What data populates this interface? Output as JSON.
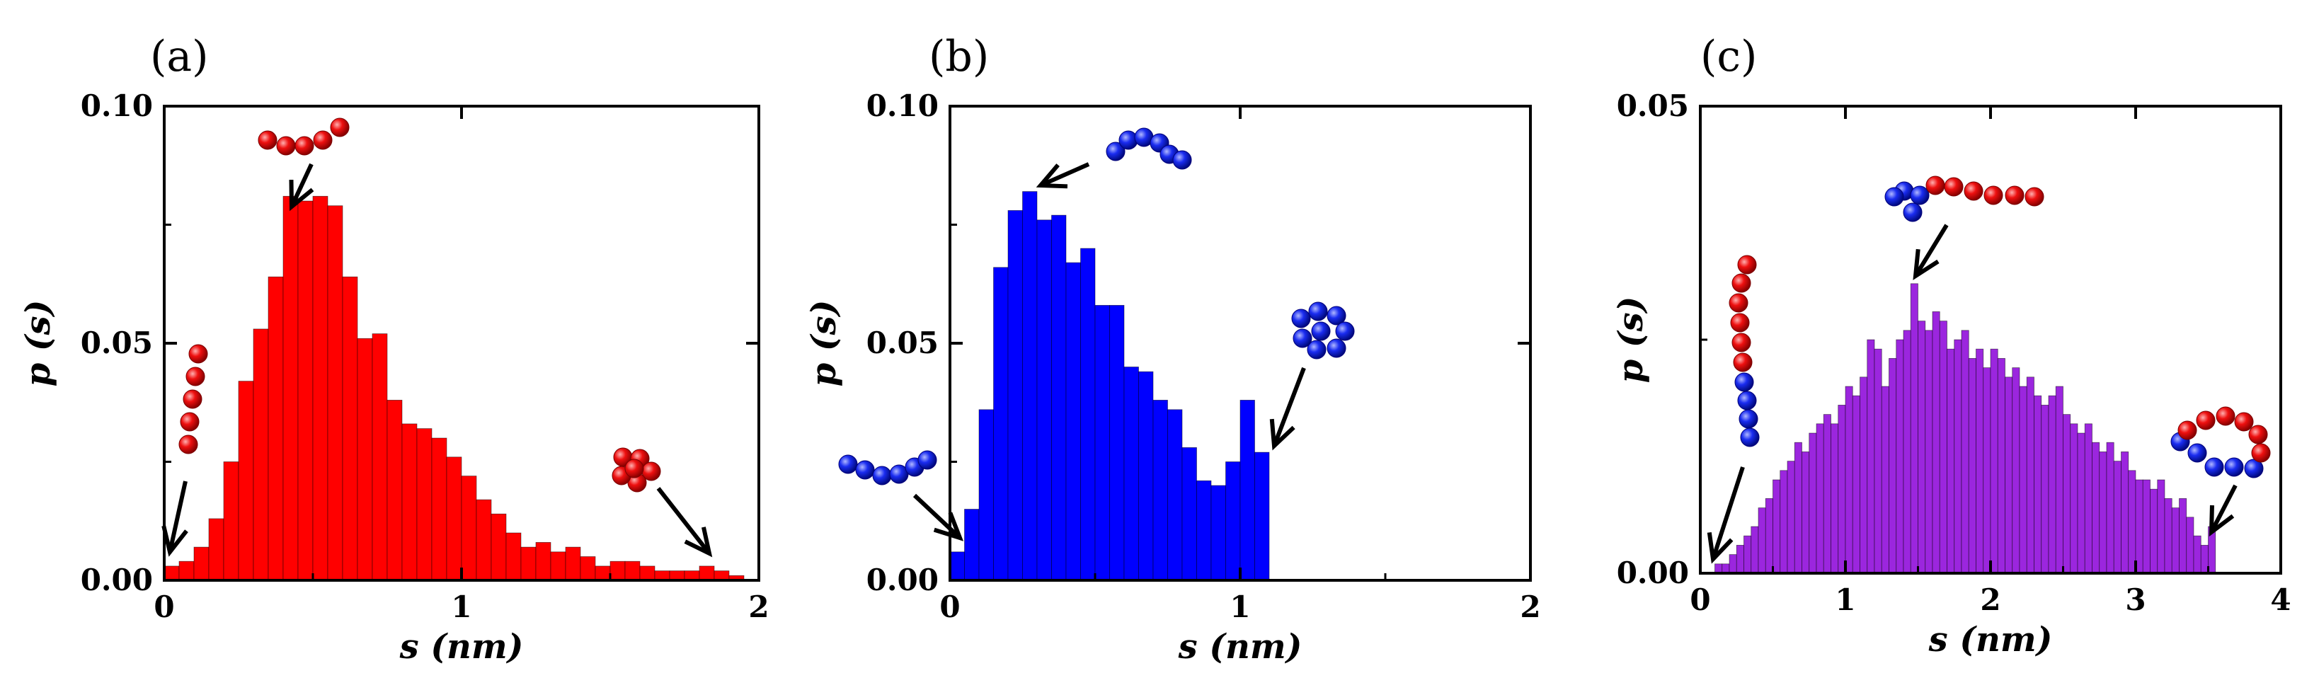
{
  "chart_data": [
    {
      "type": "bar",
      "panel_label": "(a)",
      "xlabel": "s (nm)",
      "ylabel": "p (s)",
      "xlim": [
        0,
        2
      ],
      "ylim": [
        0,
        0.1
      ],
      "xticks": [
        "0",
        "1",
        "2"
      ],
      "yticks": [
        "0.00",
        "0.05",
        "0.10"
      ],
      "ytick_values": [
        0.0,
        0.05,
        0.1
      ],
      "color": "#ff0000",
      "bin_width": 0.05,
      "x": [
        0.025,
        0.075,
        0.125,
        0.175,
        0.225,
        0.275,
        0.325,
        0.375,
        0.425,
        0.475,
        0.525,
        0.575,
        0.625,
        0.675,
        0.725,
        0.775,
        0.825,
        0.875,
        0.925,
        0.975,
        1.025,
        1.075,
        1.125,
        1.175,
        1.225,
        1.275,
        1.325,
        1.375,
        1.425,
        1.475,
        1.525,
        1.575,
        1.625,
        1.675,
        1.725,
        1.775,
        1.825,
        1.875,
        1.925
      ],
      "values": [
        0.003,
        0.004,
        0.007,
        0.013,
        0.025,
        0.042,
        0.053,
        0.064,
        0.081,
        0.08,
        0.081,
        0.079,
        0.064,
        0.051,
        0.052,
        0.038,
        0.033,
        0.032,
        0.03,
        0.026,
        0.022,
        0.017,
        0.014,
        0.01,
        0.007,
        0.008,
        0.006,
        0.007,
        0.005,
        0.003,
        0.004,
        0.004,
        0.003,
        0.002,
        0.002,
        0.002,
        0.003,
        0.002,
        0.001
      ],
      "insets": [
        {
          "chain": "red-vertical",
          "arrow": "to-left-edge"
        },
        {
          "chain": "red-horizontal",
          "arrow": "to-peak"
        },
        {
          "chain": "red-ring",
          "arrow": "to-tail"
        }
      ]
    },
    {
      "type": "bar",
      "panel_label": "(b)",
      "xlabel": "s (nm)",
      "ylabel": "p (s)",
      "xlim": [
        0,
        2
      ],
      "ylim": [
        0,
        0.1
      ],
      "xticks": [
        "0",
        "1",
        "2"
      ],
      "yticks": [
        "0.00",
        "0.05",
        "0.10"
      ],
      "ytick_values": [
        0.0,
        0.05,
        0.1
      ],
      "color": "#0000ff",
      "bin_width": 0.05,
      "x": [
        0.025,
        0.075,
        0.125,
        0.175,
        0.225,
        0.275,
        0.325,
        0.375,
        0.425,
        0.475,
        0.525,
        0.575,
        0.625,
        0.675,
        0.725,
        0.775,
        0.825,
        0.875,
        0.925,
        0.975,
        1.025,
        1.075
      ],
      "values": [
        0.006,
        0.015,
        0.036,
        0.066,
        0.078,
        0.082,
        0.076,
        0.077,
        0.067,
        0.07,
        0.058,
        0.058,
        0.045,
        0.044,
        0.038,
        0.036,
        0.028,
        0.021,
        0.02,
        0.025,
        0.038,
        0.027
      ],
      "insets": [
        {
          "chain": "blue-horizontal",
          "arrow": "to-left-edge"
        },
        {
          "chain": "blue-arc",
          "arrow": "to-peak"
        },
        {
          "chain": "blue-ring",
          "arrow": "to-right-end"
        }
      ]
    },
    {
      "type": "bar",
      "panel_label": "(c)",
      "xlabel": "s (nm)",
      "ylabel": "p (s)",
      "xlim": [
        0,
        4
      ],
      "ylim": [
        0,
        0.05
      ],
      "xticks": [
        "0",
        "1",
        "2",
        "3",
        "4"
      ],
      "yticks": [
        "0.00",
        "0.05"
      ],
      "ytick_values": [
        0.0,
        0.05
      ],
      "color": "#9b26de",
      "bin_width": 0.05,
      "x": [
        0.025,
        0.075,
        0.125,
        0.175,
        0.225,
        0.275,
        0.325,
        0.375,
        0.425,
        0.475,
        0.525,
        0.575,
        0.625,
        0.675,
        0.725,
        0.775,
        0.825,
        0.875,
        0.925,
        0.975,
        1.025,
        1.075,
        1.125,
        1.175,
        1.225,
        1.275,
        1.325,
        1.375,
        1.425,
        1.475,
        1.525,
        1.575,
        1.625,
        1.675,
        1.725,
        1.775,
        1.825,
        1.875,
        1.925,
        1.975,
        2.025,
        2.075,
        2.125,
        2.175,
        2.225,
        2.275,
        2.325,
        2.375,
        2.425,
        2.475,
        2.525,
        2.575,
        2.625,
        2.675,
        2.725,
        2.775,
        2.825,
        2.875,
        2.925,
        2.975,
        3.025,
        3.075,
        3.125,
        3.175,
        3.225,
        3.275,
        3.325,
        3.375,
        3.425,
        3.475,
        3.525
      ],
      "values": [
        0.0,
        0.0,
        0.001,
        0.001,
        0.002,
        0.003,
        0.004,
        0.005,
        0.007,
        0.008,
        0.01,
        0.011,
        0.012,
        0.014,
        0.013,
        0.015,
        0.016,
        0.017,
        0.016,
        0.018,
        0.02,
        0.019,
        0.021,
        0.025,
        0.024,
        0.02,
        0.023,
        0.025,
        0.026,
        0.031,
        0.027,
        0.026,
        0.028,
        0.027,
        0.024,
        0.025,
        0.026,
        0.023,
        0.024,
        0.022,
        0.024,
        0.023,
        0.021,
        0.022,
        0.02,
        0.021,
        0.019,
        0.018,
        0.019,
        0.02,
        0.017,
        0.016,
        0.015,
        0.016,
        0.014,
        0.013,
        0.014,
        0.012,
        0.013,
        0.011,
        0.01,
        0.01,
        0.009,
        0.01,
        0.008,
        0.007,
        0.008,
        0.006,
        0.004,
        0.003,
        0.005
      ],
      "insets": [
        {
          "chain": "red-blue-vertical",
          "arrow": "to-left-edge"
        },
        {
          "chain": "blue-red-horizontal",
          "arrow": "to-peak"
        },
        {
          "chain": "red-blue-ring",
          "arrow": "to-tail"
        }
      ]
    }
  ]
}
